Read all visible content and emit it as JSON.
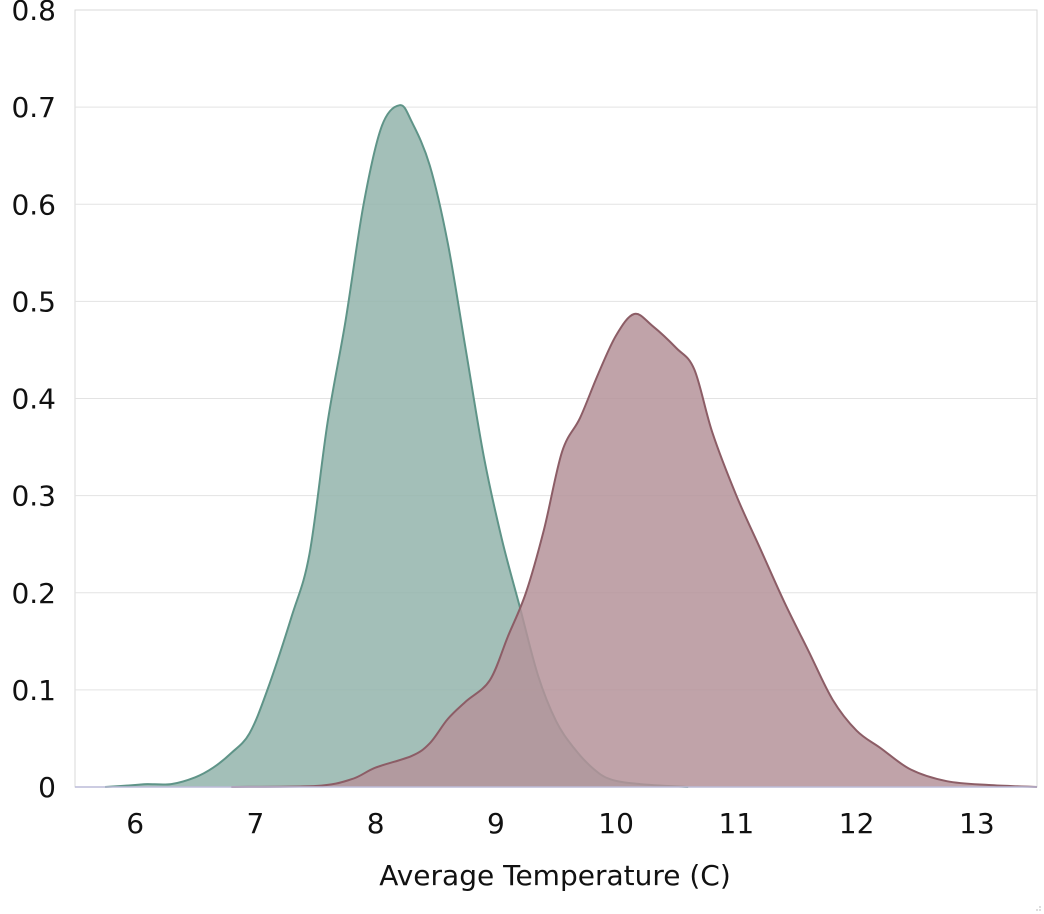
{
  "chart_data": {
    "type": "area",
    "title": "",
    "xlabel": "Average Temperature (C)",
    "ylabel": "",
    "xlim": [
      5.5,
      13.5
    ],
    "ylim": [
      0,
      0.8
    ],
    "x_ticks": [
      "6",
      "7",
      "8",
      "9",
      "10",
      "11",
      "12",
      "13"
    ],
    "y_ticks": [
      "0",
      "0.1",
      "0.2",
      "0.3",
      "0.4",
      "0.5",
      "0.6",
      "0.7",
      "0.8"
    ],
    "grid": "horizontal",
    "legend": "none",
    "series": [
      {
        "color": "#5f9488",
        "fill": "#93b4ac",
        "points": [
          [
            5.75,
            0.0
          ],
          [
            6.0,
            0.002
          ],
          [
            6.1,
            0.003
          ],
          [
            6.3,
            0.003
          ],
          [
            6.5,
            0.01
          ],
          [
            6.65,
            0.02
          ],
          [
            6.8,
            0.035
          ],
          [
            6.95,
            0.055
          ],
          [
            7.1,
            0.1
          ],
          [
            7.3,
            0.175
          ],
          [
            7.45,
            0.24
          ],
          [
            7.6,
            0.375
          ],
          [
            7.75,
            0.48
          ],
          [
            7.9,
            0.6
          ],
          [
            8.05,
            0.68
          ],
          [
            8.2,
            0.702
          ],
          [
            8.3,
            0.685
          ],
          [
            8.45,
            0.64
          ],
          [
            8.6,
            0.56
          ],
          [
            8.75,
            0.45
          ],
          [
            8.9,
            0.34
          ],
          [
            9.05,
            0.255
          ],
          [
            9.2,
            0.185
          ],
          [
            9.35,
            0.115
          ],
          [
            9.5,
            0.068
          ],
          [
            9.65,
            0.04
          ],
          [
            9.8,
            0.02
          ],
          [
            9.95,
            0.008
          ],
          [
            10.2,
            0.003
          ],
          [
            10.6,
            0.0
          ]
        ]
      },
      {
        "color": "#8c5d66",
        "fill": "#b5939a",
        "points": [
          [
            6.8,
            0.0
          ],
          [
            7.5,
            0.001
          ],
          [
            7.8,
            0.008
          ],
          [
            8.0,
            0.02
          ],
          [
            8.3,
            0.032
          ],
          [
            8.45,
            0.045
          ],
          [
            8.6,
            0.07
          ],
          [
            8.75,
            0.088
          ],
          [
            8.95,
            0.11
          ],
          [
            9.1,
            0.155
          ],
          [
            9.25,
            0.2
          ],
          [
            9.4,
            0.265
          ],
          [
            9.55,
            0.345
          ],
          [
            9.7,
            0.38
          ],
          [
            9.85,
            0.425
          ],
          [
            10.0,
            0.465
          ],
          [
            10.15,
            0.487
          ],
          [
            10.3,
            0.475
          ],
          [
            10.5,
            0.452
          ],
          [
            10.65,
            0.43
          ],
          [
            10.8,
            0.365
          ],
          [
            11.0,
            0.3
          ],
          [
            11.2,
            0.245
          ],
          [
            11.4,
            0.19
          ],
          [
            11.6,
            0.14
          ],
          [
            11.8,
            0.09
          ],
          [
            12.0,
            0.058
          ],
          [
            12.2,
            0.04
          ],
          [
            12.45,
            0.018
          ],
          [
            12.75,
            0.006
          ],
          [
            13.1,
            0.002
          ],
          [
            13.5,
            0.0
          ]
        ]
      }
    ]
  }
}
